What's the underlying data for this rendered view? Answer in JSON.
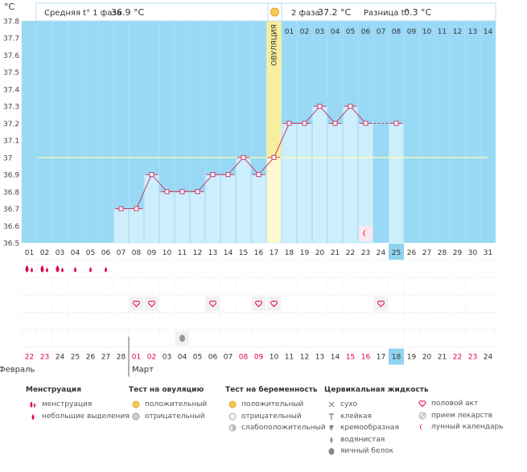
{
  "header": {
    "phase1_label": "Средняя t° 1 фаза",
    "phase1_value": "36.9 °C",
    "phase2_label": "2 фаза",
    "phase2_value": "37.2 °C",
    "diff_label": "Разница t°",
    "diff_value": "0.3 °C"
  },
  "chart_data": {
    "type": "line",
    "unit": "°C",
    "ylim": [
      36.5,
      37.8
    ],
    "y_ticks": [
      "36.5",
      "36.6",
      "36.7",
      "36.8",
      "36.9",
      "37",
      "37.1",
      "37.2",
      "37.3",
      "37.4",
      "37.5",
      "37.6",
      "37.7",
      "37.8"
    ],
    "coverline": 37.0,
    "x": [
      "01",
      "02",
      "03",
      "04",
      "05",
      "06",
      "07",
      "08",
      "09",
      "10",
      "11",
      "12",
      "13",
      "14",
      "15",
      "16",
      "17",
      "18",
      "19",
      "20",
      "21",
      "22",
      "23",
      "24",
      "25",
      "26",
      "27",
      "28",
      "29",
      "30",
      "31"
    ],
    "values": [
      null,
      null,
      null,
      null,
      null,
      null,
      36.7,
      36.7,
      36.9,
      36.8,
      36.8,
      36.8,
      36.9,
      36.9,
      37.0,
      36.9,
      37.0,
      37.2,
      37.2,
      37.3,
      37.2,
      37.3,
      37.2,
      null,
      37.2,
      null,
      null,
      null,
      null,
      null,
      null
    ],
    "ovulation_day": "17",
    "ovulation_label": "ОВУЛЯЦИЯ",
    "luteal_days": [
      "01",
      "02",
      "03",
      "04",
      "05",
      "06",
      "07",
      "08",
      "09",
      "10",
      "11",
      "12",
      "13",
      "14"
    ],
    "highlighted_day": "25",
    "menstruation_days": [
      "01",
      "02",
      "03"
    ],
    "spotting_days": [
      "04",
      "05",
      "06"
    ],
    "intercourse_days": [
      "08",
      "09",
      "13",
      "16",
      "17",
      "24"
    ],
    "egg_white_day": "11",
    "moon_day": "23",
    "calendar_dates": [
      "22",
      "23",
      "24",
      "25",
      "26",
      "27",
      "28",
      "01",
      "02",
      "03",
      "04",
      "05",
      "06",
      "07",
      "08",
      "09",
      "10",
      "11",
      "12",
      "13",
      "14",
      "15",
      "16",
      "17",
      "18",
      "19",
      "20",
      "21",
      "22",
      "23",
      "24"
    ],
    "calendar_red": [
      "22",
      "23",
      "01",
      "02",
      "08",
      "09",
      "15",
      "16",
      "22",
      "23"
    ],
    "today_date": "18",
    "month_prev": "Февраль",
    "month_next": "Март"
  },
  "legend": {
    "menstruation": {
      "title": "Менструация",
      "items": [
        "менструация",
        "небольшие выделения"
      ]
    },
    "ovulation_test": {
      "title": "Тест на овуляцию",
      "items": [
        "положительный",
        "отрицательный"
      ]
    },
    "pregnancy_test": {
      "title": "Тест на беременность",
      "items": [
        "положительный",
        "отрицательный",
        "слабоположительный"
      ]
    },
    "cervical": {
      "title": "Цервикальная жидкость",
      "items": [
        "сухо",
        "клейкая",
        "кремообразная",
        "водянистая",
        "яичный белок"
      ]
    },
    "other": {
      "items": [
        "половой акт",
        "прием лекарств",
        "лунный календарь"
      ]
    }
  },
  "colors": {
    "plot_bg": "#99d9f5",
    "bar_fill": "#cdeefd",
    "ovulation_band": "#f7ee9f",
    "line": "#c73a6a",
    "coverline": "#ffffaa",
    "red_text": "#e0004d",
    "highlight": "#8fd3ef"
  }
}
